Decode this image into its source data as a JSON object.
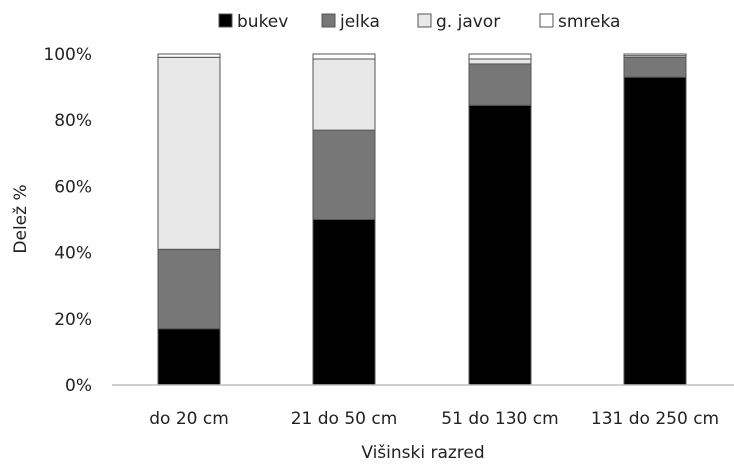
{
  "chart_data": {
    "type": "bar",
    "stacked": true,
    "percent": true,
    "categories": [
      "do 20 cm",
      "21 do 50 cm",
      "51 do 130 cm",
      "131 do 250 cm"
    ],
    "series": [
      {
        "name": "bukev",
        "color": "#000000",
        "values": [
          17,
          50,
          84.5,
          93
        ]
      },
      {
        "name": "jelka",
        "color": "#777777",
        "values": [
          24,
          27,
          12.5,
          6
        ]
      },
      {
        "name": "g. javor",
        "color": "#e8e8e8",
        "values": [
          58,
          21.5,
          1.5,
          0.5
        ]
      },
      {
        "name": "smreka",
        "color": "#ffffff",
        "values": [
          1,
          1.5,
          1.5,
          0.5
        ]
      }
    ],
    "xlabel": "Višinski razred",
    "ylabel": "Delež %",
    "ylim": [
      0,
      100
    ],
    "yticks": [
      "0%",
      "20%",
      "40%",
      "60%",
      "80%",
      "100%"
    ],
    "grid": false,
    "legend_position": "top"
  }
}
